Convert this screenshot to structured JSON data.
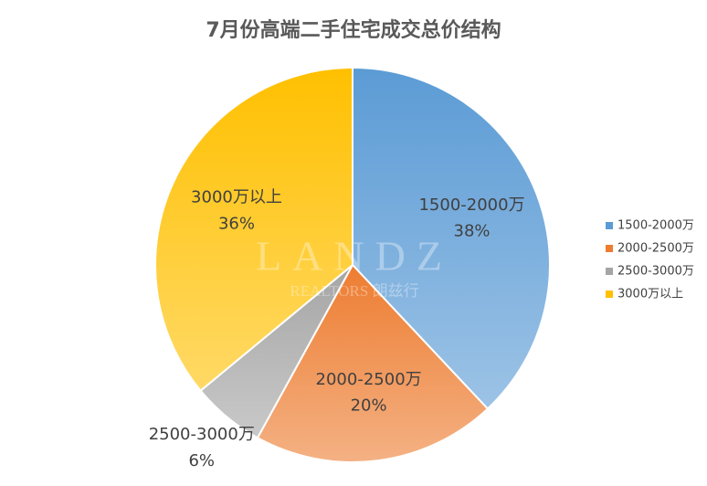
{
  "chart_data": {
    "type": "pie",
    "title": "7月份高端二手住宅成交总价结构",
    "categories": [
      "1500-2000万",
      "2000-2500万",
      "2500-3000万",
      "3000万以上"
    ],
    "values": [
      38,
      20,
      6,
      36
    ],
    "value_labels": [
      "38%",
      "20%",
      "6%",
      "36%"
    ],
    "colors": [
      "#5b9bd5",
      "#ed7d31",
      "#a5a5a5",
      "#ffc000"
    ],
    "legend": "right",
    "watermark": [
      "LANDZ",
      "REALTORS 朗兹行"
    ]
  }
}
